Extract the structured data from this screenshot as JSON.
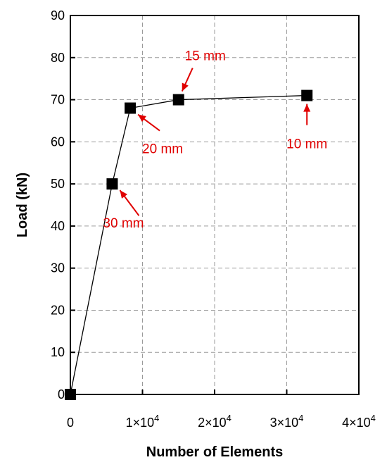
{
  "chart_data": {
    "type": "line",
    "title": "",
    "xlabel": "Number of Elements",
    "ylabel": "Load (kN)",
    "xlim": [
      0,
      40000
    ],
    "ylim": [
      0,
      90
    ],
    "grid": true,
    "x_ticks": [
      {
        "value": 0,
        "label": "0"
      },
      {
        "value": 10000,
        "label": "1×10",
        "exp": "4"
      },
      {
        "value": 20000,
        "label": "2×10",
        "exp": "4"
      },
      {
        "value": 30000,
        "label": "3×10",
        "exp": "4"
      },
      {
        "value": 40000,
        "label": "4×10",
        "exp": "4"
      }
    ],
    "y_ticks": [
      0,
      10,
      20,
      30,
      40,
      50,
      60,
      70,
      80,
      90
    ],
    "series": [
      {
        "x": [
          0,
          5800,
          8300,
          15000,
          32800
        ],
        "y": [
          0,
          50,
          68,
          70,
          71
        ],
        "marker": "square",
        "color": "#000000"
      }
    ],
    "annotations": [
      {
        "text": "30 mm",
        "x": 5800,
        "y": 50,
        "color": "#e00000"
      },
      {
        "text": "20 mm",
        "x": 8300,
        "y": 68,
        "color": "#e00000"
      },
      {
        "text": "15 mm",
        "x": 15000,
        "y": 70,
        "color": "#e00000"
      },
      {
        "text": "10 mm",
        "x": 32800,
        "y": 71,
        "color": "#e00000"
      }
    ]
  }
}
